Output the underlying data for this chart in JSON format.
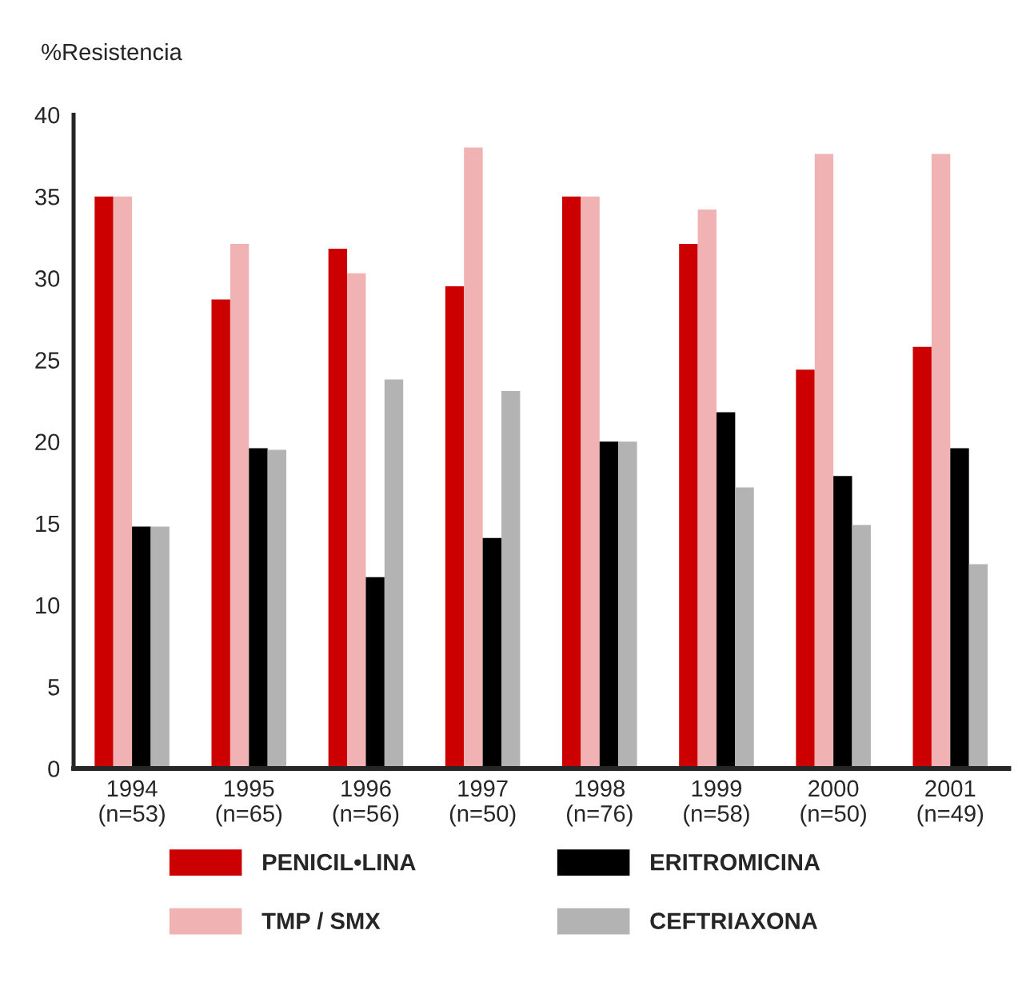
{
  "chart_data": {
    "type": "bar",
    "ylabel": "%Resistencia",
    "categories": [
      "1994\n(n=53)",
      "1995\n(n=65)",
      "1996\n(n=56)",
      "1997\n(n=50)",
      "1998\n(n=76)",
      "1999\n(n=58)",
      "2000\n(n=50)",
      "2001\n(n=49)"
    ],
    "series": [
      {
        "name": "PENICIL•LINA",
        "color": "#cc0000",
        "values": [
          35,
          28.7,
          31.8,
          29.5,
          35,
          32.1,
          24.4,
          25.8
        ]
      },
      {
        "name": "TMP / SMX",
        "color": "#f0b2b2",
        "values": [
          35,
          32.1,
          30.3,
          38,
          35,
          34.2,
          37.6,
          37.6
        ]
      },
      {
        "name": "ERITROMICINA",
        "color": "#000000",
        "values": [
          14.8,
          19.6,
          11.7,
          14.1,
          20,
          21.8,
          17.9,
          19.6
        ]
      },
      {
        "name": "CEFTRIAXONA",
        "color": "#b3b3b3",
        "values": [
          14.8,
          19.5,
          23.8,
          23.1,
          20,
          17.2,
          14.9,
          12.5
        ]
      }
    ],
    "ylim": [
      0,
      40
    ],
    "yticks": [
      0,
      5,
      10,
      15,
      20,
      25,
      30,
      35,
      40
    ],
    "grid": false,
    "legend": "bottom"
  }
}
